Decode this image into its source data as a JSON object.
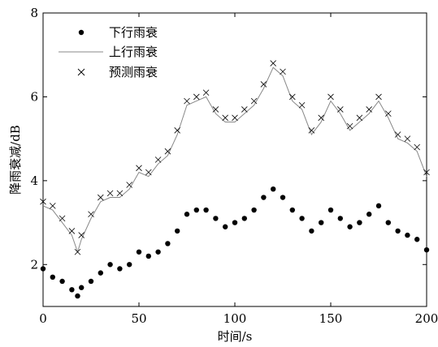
{
  "chart_data": {
    "type": "scatter",
    "xlabel": "时间/s",
    "ylabel": "降雨衰减/dB",
    "xlim": [
      0,
      200
    ],
    "ylim": [
      1,
      8
    ],
    "x_ticks": [
      "0",
      "50",
      "100",
      "150",
      "200"
    ],
    "y_ticks": [
      "2",
      "4",
      "6",
      "8"
    ],
    "grid": false,
    "legend_position": "top-left",
    "legend": [
      "下行雨衰",
      "上行雨衰",
      "预测雨衰"
    ],
    "series": [
      {
        "name": "下行雨衰",
        "style": "dots",
        "color": "#000000",
        "x": [
          0,
          5,
          10,
          15,
          18,
          20,
          25,
          30,
          35,
          40,
          45,
          50,
          55,
          60,
          65,
          70,
          75,
          80,
          85,
          90,
          95,
          100,
          105,
          110,
          115,
          120,
          125,
          130,
          135,
          140,
          145,
          150,
          155,
          160,
          165,
          170,
          175,
          180,
          185,
          190,
          195,
          200
        ],
        "y": [
          1.9,
          1.7,
          1.6,
          1.4,
          1.25,
          1.45,
          1.6,
          1.8,
          2.0,
          1.9,
          2.0,
          2.3,
          2.2,
          2.3,
          2.5,
          2.8,
          3.2,
          3.3,
          3.3,
          3.1,
          2.9,
          3.0,
          3.1,
          3.3,
          3.6,
          3.8,
          3.6,
          3.3,
          3.1,
          2.8,
          3.0,
          3.3,
          3.1,
          2.9,
          3.0,
          3.2,
          3.4,
          3.0,
          2.8,
          2.7,
          2.6,
          2.35
        ]
      },
      {
        "name": "上行雨衰",
        "style": "line",
        "color": "#888888",
        "x": [
          0,
          5,
          10,
          15,
          18,
          20,
          25,
          30,
          35,
          40,
          45,
          50,
          55,
          60,
          65,
          70,
          75,
          80,
          85,
          90,
          95,
          100,
          105,
          110,
          115,
          120,
          125,
          130,
          135,
          140,
          145,
          150,
          155,
          160,
          165,
          170,
          175,
          180,
          185,
          190,
          195,
          200
        ],
        "y": [
          3.4,
          3.3,
          3.0,
          2.7,
          2.3,
          2.6,
          3.1,
          3.5,
          3.6,
          3.6,
          3.8,
          4.2,
          4.1,
          4.4,
          4.6,
          5.1,
          5.8,
          5.9,
          6.0,
          5.6,
          5.4,
          5.4,
          5.6,
          5.8,
          6.2,
          6.7,
          6.5,
          5.9,
          5.7,
          5.1,
          5.4,
          5.9,
          5.6,
          5.2,
          5.4,
          5.6,
          5.9,
          5.5,
          5.0,
          4.9,
          4.7,
          4.1
        ]
      },
      {
        "name": "预测雨衰",
        "style": "crosses",
        "color": "#000000",
        "x": [
          0,
          5,
          10,
          15,
          18,
          20,
          25,
          30,
          35,
          40,
          45,
          50,
          55,
          60,
          65,
          70,
          75,
          80,
          85,
          90,
          95,
          100,
          105,
          110,
          115,
          120,
          125,
          130,
          135,
          140,
          145,
          150,
          155,
          160,
          165,
          170,
          175,
          180,
          185,
          190,
          195,
          200
        ],
        "y": [
          3.5,
          3.4,
          3.1,
          2.8,
          2.3,
          2.7,
          3.2,
          3.6,
          3.7,
          3.7,
          3.9,
          4.3,
          4.2,
          4.5,
          4.7,
          5.2,
          5.9,
          6.0,
          6.1,
          5.7,
          5.5,
          5.5,
          5.7,
          5.9,
          6.3,
          6.8,
          6.6,
          6.0,
          5.8,
          5.2,
          5.5,
          6.0,
          5.7,
          5.3,
          5.5,
          5.7,
          6.0,
          5.6,
          5.1,
          5.0,
          4.8,
          4.2
        ]
      }
    ]
  }
}
